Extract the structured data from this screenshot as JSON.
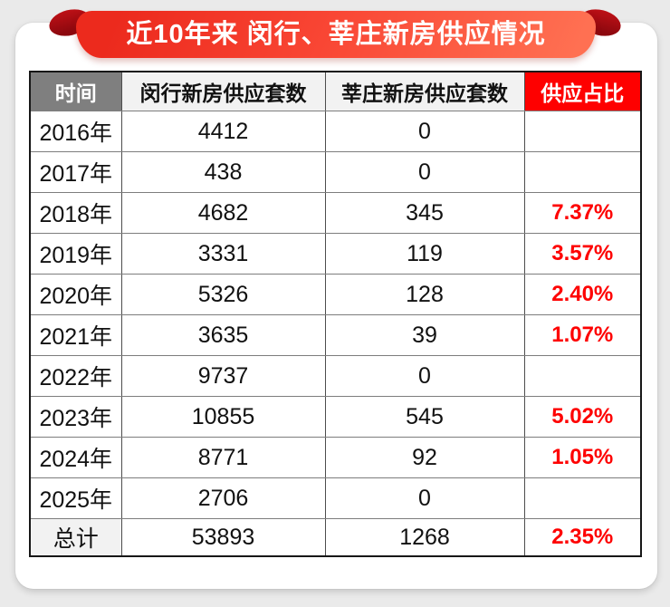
{
  "banner": {
    "title": "近10年来 闵行、莘庄新房供应情况"
  },
  "colors": {
    "accent_red": "#fe0000",
    "ribbon_red_dark": "#ec2a1d",
    "ribbon_red_light": "#ff7052",
    "fold_dark_red": "#8c080e",
    "header_gray": "#7f7f7f",
    "header_light": "#f2f2f2",
    "page_background": "#eaeaea"
  },
  "chart_data": {
    "type": "table",
    "title": "近10年来 闵行、莘庄新房供应情况",
    "columns": [
      "时间",
      "闵行新房供应套数",
      "莘庄新房供应套数",
      "供应占比"
    ],
    "rows": [
      {
        "year": "2016年",
        "minhang": "4412",
        "xinzhuang": "0",
        "ratio": ""
      },
      {
        "year": "2017年",
        "minhang": "438",
        "xinzhuang": "0",
        "ratio": ""
      },
      {
        "year": "2018年",
        "minhang": "4682",
        "xinzhuang": "345",
        "ratio": "7.37%"
      },
      {
        "year": "2019年",
        "minhang": "3331",
        "xinzhuang": "119",
        "ratio": "3.57%"
      },
      {
        "year": "2020年",
        "minhang": "5326",
        "xinzhuang": "128",
        "ratio": "2.40%"
      },
      {
        "year": "2021年",
        "minhang": "3635",
        "xinzhuang": "39",
        "ratio": "1.07%"
      },
      {
        "year": "2022年",
        "minhang": "9737",
        "xinzhuang": "0",
        "ratio": ""
      },
      {
        "year": "2023年",
        "minhang": "10855",
        "xinzhuang": "545",
        "ratio": "5.02%"
      },
      {
        "year": "2024年",
        "minhang": "8771",
        "xinzhuang": "92",
        "ratio": "1.05%"
      },
      {
        "year": "2025年",
        "minhang": "2706",
        "xinzhuang": "0",
        "ratio": ""
      }
    ],
    "total_row": {
      "year": "总计",
      "minhang": "53893",
      "xinzhuang": "1268",
      "ratio": "2.35%"
    }
  }
}
